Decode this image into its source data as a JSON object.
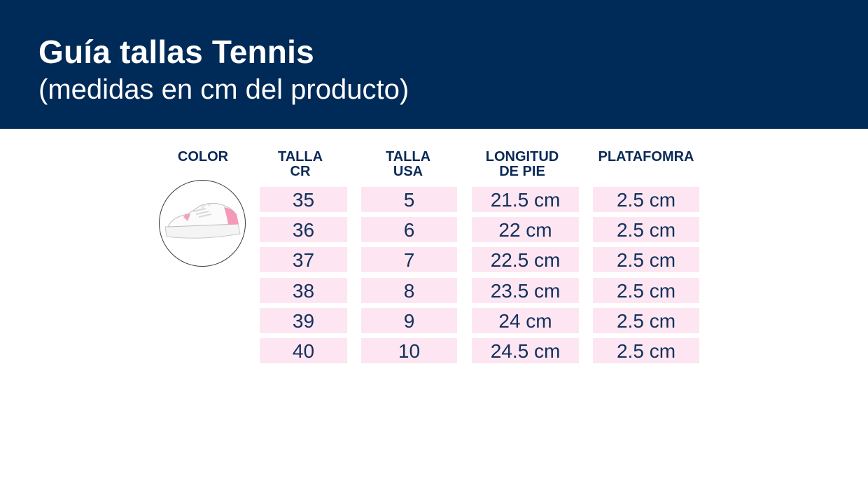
{
  "header": {
    "title": "Guía tallas Tennis",
    "subtitle": "(medidas en cm del producto)"
  },
  "table": {
    "columns": [
      {
        "line1": "COLOR",
        "line2": ""
      },
      {
        "line1": "TALLA",
        "line2": "CR"
      },
      {
        "line1": "TALLA",
        "line2": "USA"
      },
      {
        "line1": "LONGITUD",
        "line2": "DE PIE"
      },
      {
        "line1": "PLATAFOMRA",
        "line2": ""
      }
    ],
    "rows": [
      {
        "talla_cr": "35",
        "talla_usa": "5",
        "longitud": "21.5 cm",
        "plataforma": "2.5 cm"
      },
      {
        "talla_cr": "36",
        "talla_usa": "6",
        "longitud": "22 cm",
        "plataforma": "2.5 cm"
      },
      {
        "talla_cr": "37",
        "talla_usa": "7",
        "longitud": "22.5 cm",
        "plataforma": "2.5 cm"
      },
      {
        "talla_cr": "38",
        "talla_usa": "8",
        "longitud": "23.5 cm",
        "plataforma": "2.5 cm"
      },
      {
        "talla_cr": "39",
        "talla_usa": "9",
        "longitud": "24 cm",
        "plataforma": "2.5 cm"
      },
      {
        "talla_cr": "40",
        "talla_usa": "10",
        "longitud": "24.5 cm",
        "plataforma": "2.5 cm"
      }
    ]
  },
  "product": {
    "icon": "sneaker-image",
    "color": "white with pink accents"
  },
  "colors": {
    "header_bg": "#002a57",
    "cell_bg": "#fde6f2",
    "text": "#14305c"
  }
}
